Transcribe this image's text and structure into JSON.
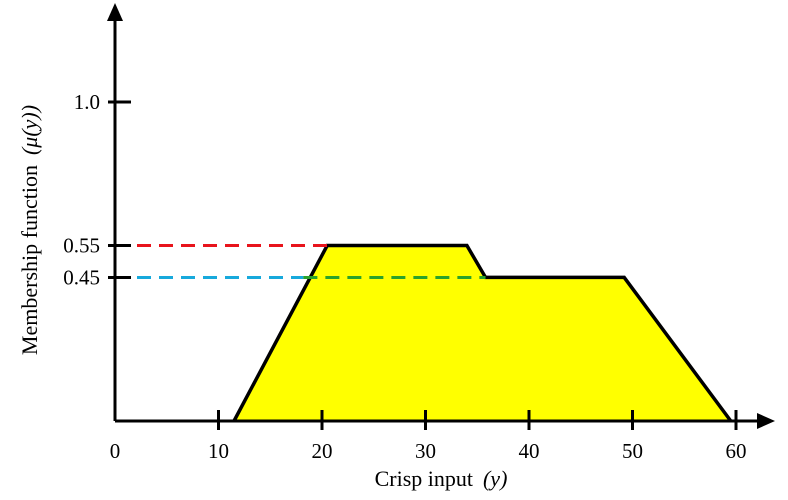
{
  "chart_data": {
    "type": "area",
    "xlabel": "Crisp input",
    "xlabel_symbol": "(y)",
    "ylabel": "Membership function",
    "ylabel_symbol": "(μ(y))",
    "xlim": [
      0,
      62
    ],
    "ylim": [
      0,
      1.1
    ],
    "x_ticks": [
      0,
      10,
      20,
      30,
      40,
      50,
      60
    ],
    "x_tick_labels": [
      "0",
      "10",
      "20",
      "30",
      "40",
      "50",
      "60"
    ],
    "y_ticks": [
      0.45,
      0.55,
      1.0
    ],
    "y_tick_labels": [
      "0.45",
      "0.55",
      "1.0"
    ],
    "grid": false,
    "series": [
      {
        "fill": "#ffff00",
        "stroke": "#000000",
        "points": [
          [
            11.5,
            0
          ],
          [
            20.5,
            0.55
          ],
          [
            34,
            0.55
          ],
          [
            35.8,
            0.45
          ],
          [
            49.2,
            0.45
          ],
          [
            59.5,
            0
          ]
        ]
      }
    ],
    "annotations": [
      {
        "y": 0.55,
        "x_from": 0,
        "x_to": 20.5,
        "style": "dashed",
        "color": "#e8141c"
      },
      {
        "y": 0.45,
        "x_from": 0,
        "x_to": 18.2,
        "style": "dashed",
        "color": "#17a9dc"
      },
      {
        "y": 0.45,
        "x_from": 18.2,
        "x_to": 35.8,
        "style": "dashed",
        "color": "#2aa22a"
      }
    ]
  }
}
